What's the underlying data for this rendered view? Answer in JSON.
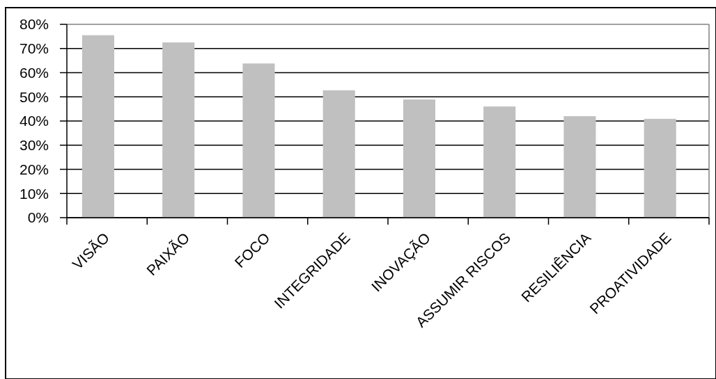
{
  "chart_data": {
    "type": "bar",
    "categories": [
      "VISÃO",
      "PAIXÃO",
      "FOCO",
      "INTEGRIDADE",
      "INOVAÇÃO",
      "ASSUMIR RISCOS",
      "RESILIÊNCIA",
      "PROATIVIDADE"
    ],
    "values": [
      75.5,
      72.5,
      63.8,
      52.7,
      48.9,
      46,
      42,
      40.9
    ],
    "color": "#c0c0c0",
    "ylim": [
      0,
      80
    ],
    "yticks": [
      {
        "value": 0,
        "label": "0%"
      },
      {
        "value": 10,
        "label": "10%"
      },
      {
        "value": 20,
        "label": "20%"
      },
      {
        "value": 30,
        "label": "30%"
      },
      {
        "value": 40,
        "label": "40%"
      },
      {
        "value": 50,
        "label": "50%"
      },
      {
        "value": 60,
        "label": "60%"
      },
      {
        "value": 70,
        "label": "70%"
      },
      {
        "value": 80,
        "label": "80%"
      }
    ],
    "grid": "y"
  }
}
